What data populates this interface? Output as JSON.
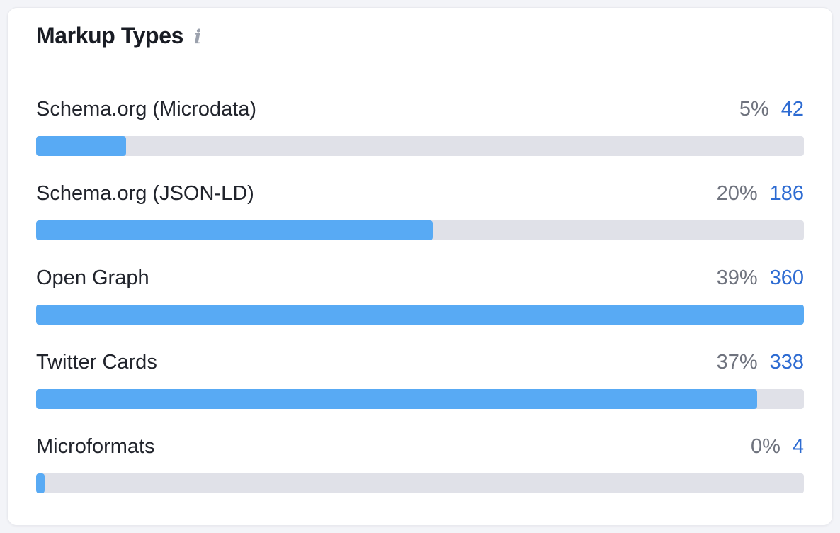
{
  "card": {
    "title": "Markup Types"
  },
  "chart_data": {
    "type": "bar",
    "orientation": "horizontal",
    "title": "Markup Types",
    "categories": [
      "Schema.org (Microdata)",
      "Schema.org (JSON-LD)",
      "Open Graph",
      "Twitter Cards",
      "Microformats"
    ],
    "series": [
      {
        "name": "percent",
        "unit": "%",
        "values": [
          5,
          20,
          39,
          37,
          0
        ]
      },
      {
        "name": "count",
        "values": [
          42,
          186,
          360,
          338,
          4
        ]
      }
    ],
    "bar_scale": "fill width = count / max count",
    "bar_scale_max": 360,
    "legend": "none",
    "grid": false,
    "colors": {
      "bar_fill": "#58aaf4",
      "bar_track": "#e0e1e8",
      "percent_text": "#6f737e",
      "count_link": "#2d6bd2",
      "title_text": "#191c24",
      "label_text": "#21242c"
    }
  },
  "rows": [
    {
      "label": "Schema.org (Microdata)",
      "percent": "5%",
      "count": "42",
      "value": 42
    },
    {
      "label": "Schema.org (JSON-LD)",
      "percent": "20%",
      "count": "186",
      "value": 186
    },
    {
      "label": "Open Graph",
      "percent": "39%",
      "count": "360",
      "value": 360
    },
    {
      "label": "Twitter Cards",
      "percent": "37%",
      "count": "338",
      "value": 338
    },
    {
      "label": "Microformats",
      "percent": "0%",
      "count": "4",
      "value": 4
    }
  ]
}
